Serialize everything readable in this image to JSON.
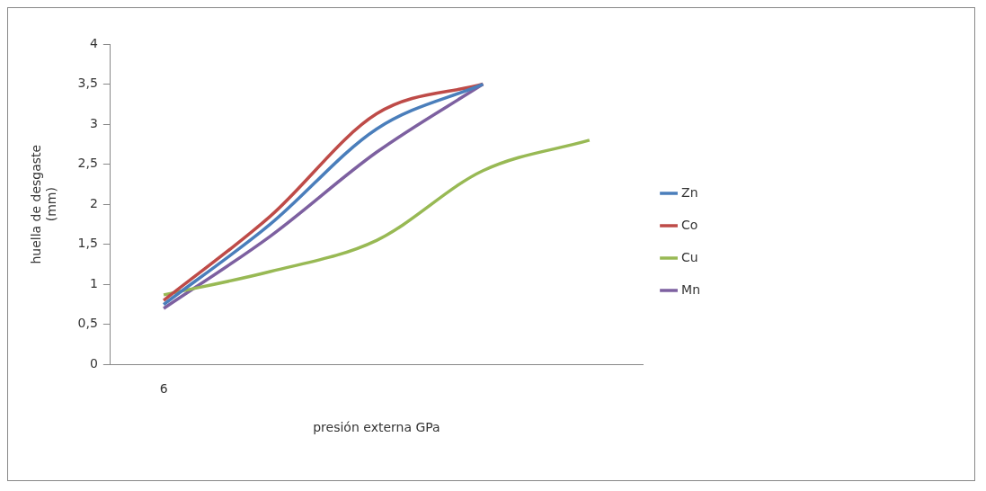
{
  "chart_data": {
    "type": "line",
    "xlabel": "presión externa GPa",
    "ylabel": "huella de desgaste (mm)",
    "categories": [
      "6",
      null,
      null,
      null,
      null
    ],
    "series": [
      {
        "name": "Zn",
        "color": "#4a7ebb",
        "values": [
          0.75,
          1.75,
          2.94,
          3.5,
          null
        ]
      },
      {
        "name": "Co",
        "color": "#be4b48",
        "values": [
          0.8,
          1.85,
          3.13,
          3.5,
          null
        ]
      },
      {
        "name": "Cu",
        "color": "#98b954",
        "values": [
          0.87,
          1.16,
          1.55,
          2.42,
          2.8
        ]
      },
      {
        "name": "Mn",
        "color": "#7d60a0",
        "values": [
          0.7,
          1.6,
          2.65,
          3.5,
          null
        ]
      }
    ],
    "ylim": [
      0,
      4
    ],
    "yticks": [
      {
        "value": 0,
        "label": "0"
      },
      {
        "value": 0.5,
        "label": "0,5"
      },
      {
        "value": 1,
        "label": "1"
      },
      {
        "value": 1.5,
        "label": "1,5"
      },
      {
        "value": 2,
        "label": "2"
      },
      {
        "value": 2.5,
        "label": "2,5"
      },
      {
        "value": 3,
        "label": "3"
      },
      {
        "value": 3.5,
        "label": "3,5"
      },
      {
        "value": 4,
        "label": "4"
      }
    ],
    "grid": false,
    "legend": "right",
    "marker": "none",
    "line_style": "solid"
  }
}
